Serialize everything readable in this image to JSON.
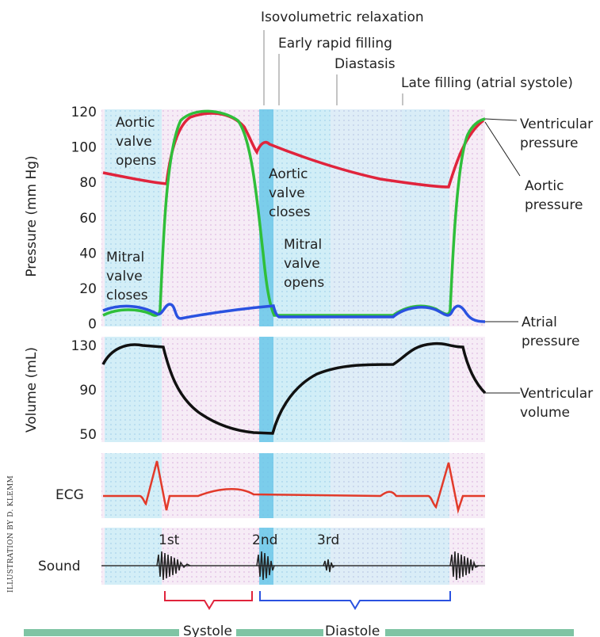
{
  "phases": {
    "isovolumetric_relaxation": "Isovolumetric relaxation",
    "early_rapid_filling": "Early rapid filling",
    "diastasis": "Diastasis",
    "late_filling": "Late filling (atrial systole)"
  },
  "pressure_panel": {
    "ylabel": "Pressure (mm Hg)",
    "ticks": [
      "120",
      "100",
      "80",
      "60",
      "40",
      "20",
      "0"
    ],
    "annotations": {
      "aortic_opens": [
        "Aortic",
        "valve",
        "opens"
      ],
      "aortic_closes": [
        "Aortic",
        "valve",
        "closes"
      ],
      "mitral_opens": [
        "Mitral",
        "valve",
        "opens"
      ],
      "mitral_closes": [
        "Mitral",
        "valve",
        "closes"
      ]
    },
    "legend": {
      "ventricular": [
        "Ventricular",
        "pressure"
      ],
      "aortic": [
        "Aortic",
        "pressure"
      ],
      "atrial": [
        "Atrial",
        "pressure"
      ]
    }
  },
  "volume_panel": {
    "ylabel": "Volume (mL)",
    "ticks": [
      "130",
      "90",
      "50"
    ],
    "legend": [
      "Ventricular",
      "volume"
    ]
  },
  "ecg_panel": {
    "label": "ECG"
  },
  "sound_panel": {
    "label": "Sound",
    "heart_sounds": [
      "1st",
      "2nd",
      "3rd"
    ]
  },
  "bottom_bar": {
    "systole": "Systole",
    "diastole": "Diastole"
  },
  "credit": "ILLUSTRATION BY D. KLEMM",
  "colors": {
    "aortic": "#e0243c",
    "ventricular": "#2fbf3a",
    "atrial": "#2a52e0",
    "volume": "#111111",
    "ecg": "#e23a2a",
    "sound": "#222222",
    "systole_bracket": "#e0243c",
    "diastole_bracket": "#2a52e0",
    "bottom_bar": "#7fc4a4"
  }
}
